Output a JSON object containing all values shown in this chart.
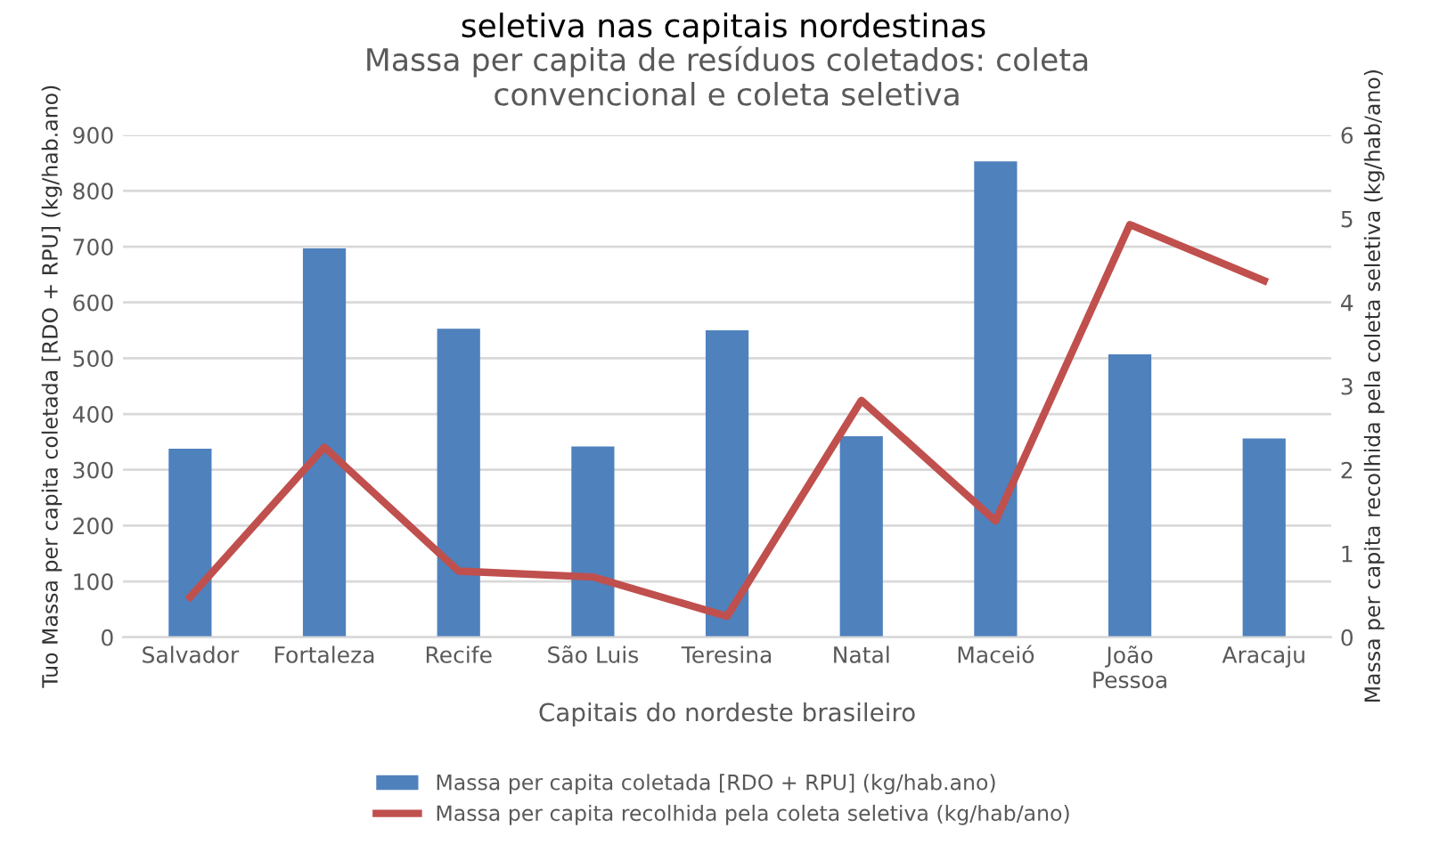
{
  "chart_data": {
    "type": "bar",
    "title": "Massa per capita de resíduos coletados: coleta\nconvencional e coleta seletiva",
    "xlabel": "Capitais do nordeste brasileiro",
    "ylabel": "Tuo Massa per capita coletada [RDO + RPU] (kg/hab.ano)",
    "y2label": "Massa per capita recolhida pela coleta seletiva (kg/hab/ano)",
    "annotations": [
      "seletiva nas capitais nordestinas"
    ],
    "categories": [
      "Salvador",
      "Fortaleza",
      "Recife",
      "São Luis",
      "Teresina",
      "Natal",
      "Maceió",
      "João\nPessoa",
      "Aracaju"
    ],
    "series": [
      {
        "name": "Massa per capita coletada [RDO + RPU] (kg/hab.ano)",
        "color": "#4f81bd",
        "values": [
          338,
          697,
          553,
          342,
          550,
          360,
          853,
          507,
          356
        ]
      },
      {
        "name": "Massa per capita recolhida pela coleta seletiva (kg/hab/ano)",
        "type": "line",
        "axis": "y2",
        "color": "#c0504d",
        "values": [
          0.48,
          2.27,
          0.79,
          0.72,
          0.25,
          2.83,
          1.39,
          4.93,
          4.26
        ]
      }
    ],
    "ylim": [
      0,
      900
    ],
    "yticks": [
      0,
      100,
      200,
      300,
      400,
      500,
      600,
      700,
      800,
      900
    ],
    "y2lim": [
      0,
      6
    ],
    "y2ticks": [
      0,
      1,
      2,
      3,
      4,
      5,
      6
    ],
    "grid": "y",
    "legend": "bottom",
    "marker": "none",
    "line_style": "solid"
  }
}
